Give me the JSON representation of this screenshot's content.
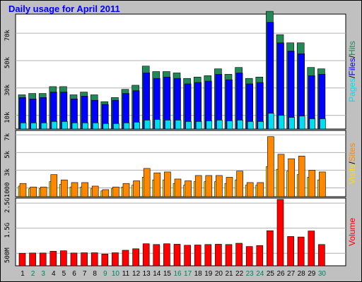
{
  "title": "Daily usage for April 2011",
  "colors": {
    "background": "#c0c0c0",
    "panel": "#ffffff",
    "hits": "#228855",
    "files": "#0000ff",
    "pages": "#00ddee",
    "visits": "#ffdd00",
    "sites": "#ff8800",
    "volume": "#ff0000",
    "weekday": "#000000",
    "weekend": "#00805a",
    "grid": "#b0b0b0"
  },
  "chart_data": [
    {
      "type": "bar",
      "name": "hits-files-pages",
      "categories": [
        "1",
        "2",
        "3",
        "4",
        "5",
        "6",
        "7",
        "8",
        "9",
        "10",
        "11",
        "12",
        "13",
        "14",
        "15",
        "16",
        "17",
        "18",
        "19",
        "20",
        "21",
        "22",
        "23",
        "24",
        "25",
        "26",
        "27",
        "28",
        "29",
        "30"
      ],
      "weekend": [
        2,
        3,
        9,
        10,
        16,
        17,
        23,
        24,
        30
      ],
      "ylim": [
        0,
        84000
      ],
      "yticks": [
        10000,
        30000,
        50000,
        70000
      ],
      "ytick_labels": [
        "10k",
        "30k",
        "50k",
        "70k"
      ],
      "series": [
        {
          "name": "Hits",
          "values": [
            25000,
            26000,
            26000,
            31000,
            31000,
            25000,
            27000,
            25000,
            20000,
            23000,
            29000,
            32000,
            46000,
            42000,
            42000,
            41000,
            37000,
            38000,
            39000,
            44000,
            40000,
            45000,
            37000,
            38000,
            86000,
            69000,
            63000,
            63000,
            45000,
            44000
          ]
        },
        {
          "name": "Files",
          "values": [
            23000,
            22000,
            23000,
            27000,
            27000,
            22000,
            24000,
            21000,
            18000,
            21000,
            26000,
            28000,
            41000,
            37000,
            38000,
            37000,
            33000,
            34000,
            35000,
            40000,
            36000,
            41000,
            33000,
            34000,
            78000,
            63000,
            57000,
            55000,
            39000,
            40000
          ]
        },
        {
          "name": "Pages",
          "values": [
            4500,
            4500,
            4500,
            5500,
            5500,
            4500,
            4500,
            4500,
            4000,
            4000,
            4500,
            5000,
            6500,
            7000,
            6500,
            6500,
            5500,
            5500,
            6000,
            6500,
            6000,
            6500,
            5500,
            5500,
            11500,
            10000,
            8500,
            9500,
            7500,
            7500
          ]
        }
      ],
      "side_label": [
        {
          "text": "Pages",
          "color": "#00ddee"
        },
        {
          "text": "/",
          "color": "#000000"
        },
        {
          "text": "Files",
          "color": "#0000ff"
        },
        {
          "text": "/",
          "color": "#000000"
        },
        {
          "text": "Hits",
          "color": "#228855"
        }
      ]
    },
    {
      "type": "bar",
      "name": "visits-sites",
      "ylim": [
        0,
        7500
      ],
      "yticks": [
        1000,
        3000,
        5000,
        7000
      ],
      "ytick_labels": [
        "1000",
        "3k",
        "5k",
        "7k"
      ],
      "series": [
        {
          "name": "Visits",
          "values": [
            1200,
            900,
            900,
            1700,
            1400,
            1100,
            1100,
            900,
            650,
            900,
            1100,
            1300,
            2200,
            1900,
            1900,
            1500,
            1300,
            1700,
            1700,
            1700,
            1500,
            1900,
            1300,
            1300,
            3400,
            3100,
            2900,
            2500,
            2200,
            1900
          ]
        },
        {
          "name": "Sites",
          "values": [
            1500,
            1100,
            1100,
            2500,
            1900,
            1600,
            1600,
            1200,
            800,
            1100,
            1500,
            1800,
            3200,
            2700,
            2800,
            2000,
            1800,
            2400,
            2400,
            2400,
            2200,
            2900,
            1600,
            1600,
            6800,
            4800,
            4300,
            4600,
            3000,
            2800
          ]
        }
      ],
      "side_label": [
        {
          "text": "Visits",
          "color": "#ffdd00"
        },
        {
          "text": "/",
          "color": "#000000"
        },
        {
          "text": "Sites",
          "color": "#ff8800"
        }
      ]
    },
    {
      "type": "bar",
      "name": "volume",
      "ylim": [
        0,
        2700
      ],
      "yticks": [
        500,
        1500,
        2500
      ],
      "ytick_labels": [
        "500M",
        "1.5G",
        "2.5G"
      ],
      "series": [
        {
          "name": "Volume",
          "values": [
            500,
            510,
            510,
            580,
            600,
            510,
            520,
            520,
            470,
            520,
            620,
            680,
            880,
            850,
            880,
            860,
            820,
            830,
            850,
            860,
            850,
            900,
            770,
            810,
            1400,
            2650,
            1170,
            1150,
            1390,
            850
          ]
        }
      ],
      "side_label": [
        {
          "text": "Volume",
          "color": "#ff0000"
        }
      ]
    }
  ]
}
